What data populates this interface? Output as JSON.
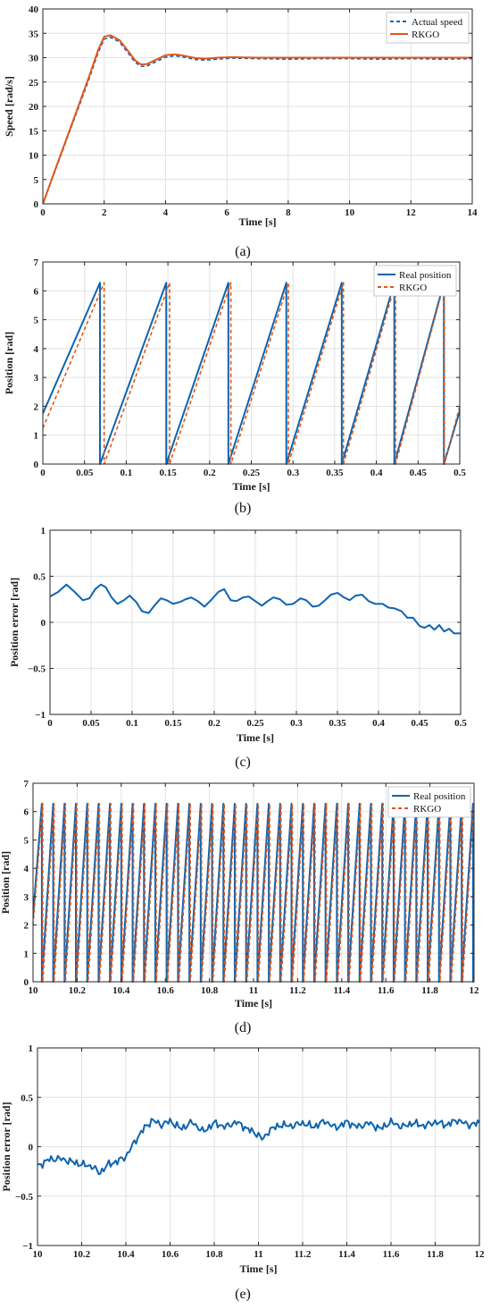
{
  "colors": {
    "blue": "#0d64b0",
    "orange": "#e25518",
    "grid": "#e2e2e2",
    "axis": "#262626"
  },
  "chart_data": [
    {
      "id": "a",
      "type": "line",
      "sublabel": "(a)",
      "xlabel": "Time [s]",
      "ylabel": "Speed [rad/s]",
      "xlim": [
        0,
        14
      ],
      "ylim": [
        0,
        40
      ],
      "xticks": [
        0,
        2,
        4,
        6,
        8,
        10,
        12,
        14
      ],
      "yticks": [
        0,
        5,
        10,
        15,
        20,
        25,
        30,
        35,
        40
      ],
      "grid": true,
      "legend_position": "top-right",
      "series": [
        {
          "name": "Actual speed",
          "style": "dashed",
          "color": "#0d64b0",
          "x": [
            0,
            0.5,
            1,
            1.5,
            1.8,
            2.0,
            2.2,
            2.5,
            2.8,
            3.0,
            3.2,
            3.4,
            3.7,
            4.0,
            4.3,
            4.6,
            5.0,
            5.3,
            5.7,
            6.2,
            7,
            8,
            9,
            10,
            11,
            12,
            13,
            14
          ],
          "y": [
            0,
            8.5,
            17,
            25.5,
            31,
            33.8,
            34.2,
            33.2,
            30.8,
            29.1,
            28.2,
            28.3,
            29.2,
            30.1,
            30.4,
            30.1,
            29.6,
            29.5,
            29.7,
            29.9,
            29.8,
            29.7,
            29.8,
            29.8,
            29.7,
            29.8,
            29.7,
            29.8
          ]
        },
        {
          "name": "RKGO",
          "style": "solid",
          "color": "#e25518",
          "x": [
            0,
            0.5,
            1,
            1.5,
            1.8,
            2.0,
            2.2,
            2.5,
            2.8,
            3.0,
            3.2,
            3.4,
            3.7,
            4.0,
            4.3,
            4.6,
            5.0,
            5.3,
            5.7,
            6.2,
            7,
            8,
            9,
            10,
            11,
            12,
            13,
            14
          ],
          "y": [
            0,
            8.7,
            17.3,
            26,
            31.5,
            34.3,
            34.6,
            33.6,
            31.2,
            29.5,
            28.6,
            28.7,
            29.6,
            30.5,
            30.7,
            30.4,
            29.9,
            29.8,
            30.0,
            30.1,
            30.0,
            30.0,
            30.0,
            30.0,
            30.0,
            30.0,
            30.0,
            30.0
          ]
        }
      ]
    },
    {
      "id": "b",
      "type": "line",
      "sublabel": "(b)",
      "xlabel": "Time [s]",
      "ylabel": "Position [rad]",
      "xlim": [
        0,
        0.5
      ],
      "ylim": [
        0,
        7
      ],
      "xticks": [
        0,
        0.05,
        0.1,
        0.15,
        0.2,
        0.25,
        0.3,
        0.35,
        0.4,
        0.45,
        0.5
      ],
      "yticks": [
        0,
        1,
        2,
        3,
        4,
        5,
        6,
        7
      ],
      "grid": true,
      "legend_position": "top-right",
      "series": [
        {
          "name": "Real position",
          "style": "solid",
          "color": "#0d64b0",
          "x": [
            0,
            0.0685,
            0.0685,
            0.148,
            0.148,
            0.2225,
            0.2225,
            0.292,
            0.292,
            0.3585,
            0.3585,
            0.4215,
            0.4215,
            0.481,
            0.481,
            0.5
          ],
          "y": [
            1.75,
            6.28,
            0,
            6.28,
            0,
            6.28,
            0,
            6.28,
            0,
            6.28,
            0,
            6.28,
            0,
            6.28,
            0,
            1.85
          ]
        },
        {
          "name": "RKGO",
          "style": "dashed",
          "color": "#e25518",
          "x": [
            0,
            0.0735,
            0.0735,
            0.152,
            0.152,
            0.2255,
            0.2255,
            0.2945,
            0.2945,
            0.3605,
            0.3605,
            0.423,
            0.423,
            0.4815,
            0.4815,
            0.5
          ],
          "y": [
            1.25,
            6.28,
            0,
            6.28,
            0,
            6.28,
            0,
            6.28,
            0,
            6.28,
            0,
            6.28,
            0,
            6.28,
            0,
            2.0
          ]
        }
      ]
    },
    {
      "id": "c",
      "type": "line",
      "sublabel": "(c)",
      "xlabel": "Time [s]",
      "ylabel": "Position error [rad]",
      "xlim": [
        0,
        0.5
      ],
      "ylim": [
        -1,
        1
      ],
      "xticks": [
        0,
        0.05,
        0.1,
        0.15,
        0.2,
        0.25,
        0.3,
        0.35,
        0.4,
        0.45,
        0.5
      ],
      "yticks": [
        -1,
        -0.5,
        0,
        0.5,
        1
      ],
      "grid": true,
      "series": [
        {
          "name": "",
          "style": "solid",
          "color": "#0d64b0",
          "x": [
            0,
            0.01,
            0.02,
            0.03,
            0.04,
            0.048,
            0.055,
            0.062,
            0.068,
            0.075,
            0.082,
            0.09,
            0.097,
            0.105,
            0.112,
            0.12,
            0.127,
            0.135,
            0.142,
            0.15,
            0.158,
            0.165,
            0.172,
            0.18,
            0.188,
            0.196,
            0.205,
            0.212,
            0.22,
            0.227,
            0.235,
            0.242,
            0.25,
            0.258,
            0.265,
            0.272,
            0.28,
            0.288,
            0.296,
            0.305,
            0.312,
            0.32,
            0.327,
            0.335,
            0.342,
            0.35,
            0.358,
            0.365,
            0.372,
            0.38,
            0.388,
            0.396,
            0.405,
            0.412,
            0.42,
            0.428,
            0.435,
            0.442,
            0.45,
            0.456,
            0.462,
            0.468,
            0.474,
            0.48,
            0.486,
            0.492,
            0.5
          ],
          "y": [
            0.28,
            0.33,
            0.41,
            0.33,
            0.24,
            0.26,
            0.36,
            0.41,
            0.38,
            0.27,
            0.2,
            0.24,
            0.29,
            0.22,
            0.12,
            0.1,
            0.18,
            0.26,
            0.24,
            0.2,
            0.22,
            0.25,
            0.27,
            0.23,
            0.17,
            0.24,
            0.33,
            0.36,
            0.24,
            0.23,
            0.27,
            0.28,
            0.23,
            0.18,
            0.23,
            0.27,
            0.25,
            0.19,
            0.2,
            0.26,
            0.24,
            0.17,
            0.18,
            0.24,
            0.3,
            0.32,
            0.27,
            0.24,
            0.29,
            0.3,
            0.23,
            0.2,
            0.2,
            0.16,
            0.15,
            0.12,
            0.05,
            0.05,
            -0.04,
            -0.06,
            -0.03,
            -0.08,
            -0.03,
            -0.1,
            -0.07,
            -0.12,
            -0.12
          ]
        }
      ]
    },
    {
      "id": "d",
      "type": "line",
      "sublabel": "(d)",
      "xlabel": "Time [s]",
      "ylabel": "Position [rad]",
      "xlim": [
        10,
        12
      ],
      "ylim": [
        0,
        7
      ],
      "xticks": [
        10,
        10.2,
        10.4,
        10.6,
        10.8,
        11,
        11.2,
        11.4,
        11.6,
        11.8,
        12
      ],
      "yticks": [
        0,
        1,
        2,
        3,
        4,
        5,
        6,
        7
      ],
      "grid": true,
      "legend_position": "top-right",
      "sawtooth": {
        "period": 0.05146,
        "first_wrap": 10.04,
        "max": 6.28,
        "start_value": 2.3,
        "rkgo_lag": 0.004
      },
      "series": [
        {
          "name": "Real position",
          "style": "solid",
          "color": "#0d64b0"
        },
        {
          "name": "RKGO",
          "style": "dashed",
          "color": "#e25518"
        }
      ]
    },
    {
      "id": "e",
      "type": "line",
      "sublabel": "(e)",
      "xlabel": "Time [s]",
      "ylabel": "Position error [rad]",
      "xlim": [
        10,
        12
      ],
      "ylim": [
        -1,
        1
      ],
      "xticks": [
        10,
        10.2,
        10.4,
        10.6,
        10.8,
        11,
        11.2,
        11.4,
        11.6,
        11.8,
        12
      ],
      "yticks": [
        -1,
        -0.5,
        0,
        0.5,
        1
      ],
      "grid": true,
      "series": [
        {
          "name": "",
          "style": "solid",
          "color": "#0d64b0",
          "x": [
            10,
            10.05,
            10.1,
            10.15,
            10.2,
            10.25,
            10.28,
            10.32,
            10.36,
            10.4,
            10.44,
            10.48,
            10.52,
            10.56,
            10.6,
            10.65,
            10.7,
            10.75,
            10.8,
            10.85,
            10.9,
            10.95,
            11.0,
            11.02,
            11.05,
            11.1,
            11.15,
            11.2,
            11.25,
            11.3,
            11.35,
            11.4,
            11.45,
            11.5,
            11.55,
            11.6,
            11.65,
            11.7,
            11.75,
            11.8,
            11.85,
            11.9,
            11.95,
            12.0
          ],
          "y": [
            -0.2,
            -0.13,
            -0.12,
            -0.15,
            -0.18,
            -0.2,
            -0.27,
            -0.18,
            -0.15,
            -0.1,
            0.05,
            0.18,
            0.27,
            0.22,
            0.26,
            0.18,
            0.25,
            0.15,
            0.24,
            0.2,
            0.25,
            0.18,
            0.12,
            0.07,
            0.17,
            0.22,
            0.21,
            0.24,
            0.2,
            0.26,
            0.19,
            0.25,
            0.2,
            0.24,
            0.18,
            0.25,
            0.2,
            0.24,
            0.21,
            0.25,
            0.22,
            0.27,
            0.22,
            0.24
          ],
          "noise_amplitude": 0.06
        }
      ]
    }
  ]
}
